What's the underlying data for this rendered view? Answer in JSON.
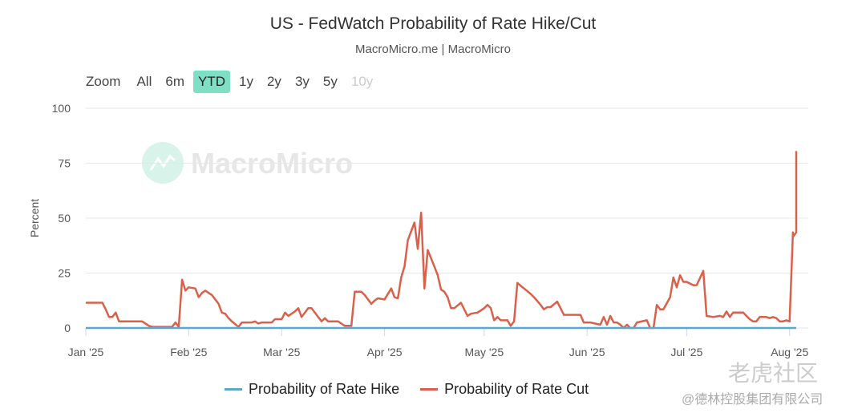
{
  "chart_data": {
    "type": "line",
    "title": "US - FedWatch Probability of Rate Hike/Cut",
    "subtitle": "MacroMicro.me | MacroMicro",
    "ylabel": "Percent",
    "ylim": [
      0,
      100
    ],
    "yticks": [
      0,
      25,
      50,
      75,
      100
    ],
    "xlim": [
      "2025-01-01",
      "2025-08-03"
    ],
    "xticks": [
      {
        "date": "2025-01-01",
        "label": "Jan '25"
      },
      {
        "date": "2025-02-01",
        "label": "Feb '25"
      },
      {
        "date": "2025-03-01",
        "label": "Mar '25"
      },
      {
        "date": "2025-04-01",
        "label": "Apr '25"
      },
      {
        "date": "2025-05-01",
        "label": "May '25"
      },
      {
        "date": "2025-06-01",
        "label": "Jun '25"
      },
      {
        "date": "2025-07-01",
        "label": "Jul '25"
      },
      {
        "date": "2025-08-01",
        "label": "Aug '25"
      }
    ],
    "grid": true,
    "legend_position": "bottom",
    "series": [
      {
        "name": "Probability of Rate Hike",
        "color": "#5ba8c9",
        "points": [
          [
            "2025-01-01",
            0
          ],
          [
            "2025-08-03",
            0
          ]
        ]
      },
      {
        "name": "Probability of Rate Cut",
        "color": "#d9604a",
        "points": [
          [
            "2025-01-01",
            11.5
          ],
          [
            "2025-01-06",
            11.5
          ],
          [
            "2025-01-07",
            8.5
          ],
          [
            "2025-01-08",
            5
          ],
          [
            "2025-01-09",
            5
          ],
          [
            "2025-01-10",
            7
          ],
          [
            "2025-01-11",
            3
          ],
          [
            "2025-01-18",
            3
          ],
          [
            "2025-01-20",
            1
          ],
          [
            "2025-01-21",
            0.5
          ],
          [
            "2025-01-27",
            0.5
          ],
          [
            "2025-01-28",
            2.5
          ],
          [
            "2025-01-29",
            0.5
          ],
          [
            "2025-01-30",
            22
          ],
          [
            "2025-01-31",
            17
          ],
          [
            "2025-02-01",
            18.5
          ],
          [
            "2025-02-03",
            18
          ],
          [
            "2025-02-04",
            14
          ],
          [
            "2025-02-05",
            16
          ],
          [
            "2025-02-06",
            17
          ],
          [
            "2025-02-08",
            15
          ],
          [
            "2025-02-10",
            11
          ],
          [
            "2025-02-11",
            7
          ],
          [
            "2025-02-12",
            6.5
          ],
          [
            "2025-02-13",
            4.5
          ],
          [
            "2025-02-14",
            3
          ],
          [
            "2025-02-16",
            0.5
          ],
          [
            "2025-02-17",
            2.5
          ],
          [
            "2025-02-20",
            2.5
          ],
          [
            "2025-02-21",
            3
          ],
          [
            "2025-02-22",
            2
          ],
          [
            "2025-02-23",
            2.5
          ],
          [
            "2025-02-26",
            2.5
          ],
          [
            "2025-02-27",
            4
          ],
          [
            "2025-03-01",
            4
          ],
          [
            "2025-03-02",
            7
          ],
          [
            "2025-03-03",
            5.5
          ],
          [
            "2025-03-04",
            6.5
          ],
          [
            "2025-03-05",
            7.5
          ],
          [
            "2025-03-06",
            9
          ],
          [
            "2025-03-07",
            5
          ],
          [
            "2025-03-08",
            7
          ],
          [
            "2025-03-09",
            9
          ],
          [
            "2025-03-10",
            9
          ],
          [
            "2025-03-12",
            5
          ],
          [
            "2025-03-13",
            3
          ],
          [
            "2025-03-14",
            4.5
          ],
          [
            "2025-03-15",
            3
          ],
          [
            "2025-03-18",
            3
          ],
          [
            "2025-03-19",
            2
          ],
          [
            "2025-03-20",
            1
          ],
          [
            "2025-03-22",
            1
          ],
          [
            "2025-03-23",
            16.5
          ],
          [
            "2025-03-25",
            16.5
          ],
          [
            "2025-03-26",
            15
          ],
          [
            "2025-03-28",
            11
          ],
          [
            "2025-03-29",
            12.5
          ],
          [
            "2025-03-30",
            13.5
          ],
          [
            "2025-04-01",
            13
          ],
          [
            "2025-04-03",
            18
          ],
          [
            "2025-04-04",
            14
          ],
          [
            "2025-04-05",
            13.5
          ],
          [
            "2025-04-06",
            23
          ],
          [
            "2025-04-07",
            28
          ],
          [
            "2025-04-08",
            40
          ],
          [
            "2025-04-10",
            48
          ],
          [
            "2025-04-11",
            36
          ],
          [
            "2025-04-12",
            52.5
          ],
          [
            "2025-04-13",
            18
          ],
          [
            "2025-04-14",
            35.5
          ],
          [
            "2025-04-16",
            28
          ],
          [
            "2025-04-17",
            24
          ],
          [
            "2025-04-18",
            17.5
          ],
          [
            "2025-04-19",
            16.5
          ],
          [
            "2025-04-20",
            14
          ],
          [
            "2025-04-21",
            9
          ],
          [
            "2025-04-22",
            9
          ],
          [
            "2025-04-24",
            11.5
          ],
          [
            "2025-04-26",
            5.5
          ],
          [
            "2025-04-27",
            6.5
          ],
          [
            "2025-04-29",
            7
          ],
          [
            "2025-05-01",
            9
          ],
          [
            "2025-05-02",
            10.5
          ],
          [
            "2025-05-03",
            9
          ],
          [
            "2025-05-04",
            3.5
          ],
          [
            "2025-05-05",
            5
          ],
          [
            "2025-05-06",
            3.5
          ],
          [
            "2025-05-08",
            3.5
          ],
          [
            "2025-05-09",
            1
          ],
          [
            "2025-05-10",
            3
          ],
          [
            "2025-05-11",
            20.5
          ],
          [
            "2025-05-13",
            18
          ],
          [
            "2025-05-15",
            15.5
          ],
          [
            "2025-05-16",
            14
          ],
          [
            "2025-05-18",
            10.5
          ],
          [
            "2025-05-19",
            8.5
          ],
          [
            "2025-05-20",
            9.5
          ],
          [
            "2025-05-21",
            9.5
          ],
          [
            "2025-05-23",
            12
          ],
          [
            "2025-05-25",
            6
          ],
          [
            "2025-05-29",
            6
          ],
          [
            "2025-05-30",
            6
          ],
          [
            "2025-05-31",
            2.5
          ],
          [
            "2025-06-02",
            2.5
          ],
          [
            "2025-06-05",
            1.5
          ],
          [
            "2025-06-06",
            5
          ],
          [
            "2025-06-07",
            1.5
          ],
          [
            "2025-06-08",
            5.5
          ],
          [
            "2025-06-09",
            2.5
          ],
          [
            "2025-06-10",
            2.5
          ],
          [
            "2025-06-11",
            1.5
          ],
          [
            "2025-06-12",
            0
          ],
          [
            "2025-06-13",
            1.5
          ],
          [
            "2025-06-14",
            0
          ],
          [
            "2025-06-15",
            0
          ],
          [
            "2025-06-16",
            2.5
          ],
          [
            "2025-06-19",
            3.5
          ],
          [
            "2025-06-20",
            0
          ],
          [
            "2025-06-21",
            0
          ],
          [
            "2025-06-22",
            10.5
          ],
          [
            "2025-06-23",
            8.5
          ],
          [
            "2025-06-24",
            8.5
          ],
          [
            "2025-06-26",
            14
          ],
          [
            "2025-06-27",
            23
          ],
          [
            "2025-06-28",
            18.5
          ],
          [
            "2025-06-29",
            24
          ],
          [
            "2025-06-30",
            21
          ],
          [
            "2025-07-01",
            21
          ],
          [
            "2025-07-03",
            19.5
          ],
          [
            "2025-07-04",
            19.5
          ],
          [
            "2025-07-06",
            26
          ],
          [
            "2025-07-07",
            5.5
          ],
          [
            "2025-07-09",
            5
          ],
          [
            "2025-07-11",
            5.5
          ],
          [
            "2025-07-12",
            5
          ],
          [
            "2025-07-13",
            7.5
          ],
          [
            "2025-07-14",
            5
          ],
          [
            "2025-07-15",
            7
          ],
          [
            "2025-07-18",
            7
          ],
          [
            "2025-07-20",
            4
          ],
          [
            "2025-07-21",
            3
          ],
          [
            "2025-07-22",
            3
          ],
          [
            "2025-07-23",
            5
          ],
          [
            "2025-07-25",
            5
          ],
          [
            "2025-07-26",
            4.5
          ],
          [
            "2025-07-27",
            5
          ],
          [
            "2025-07-28",
            4.5
          ],
          [
            "2025-07-29",
            3
          ],
          [
            "2025-07-30",
            3
          ],
          [
            "2025-07-31",
            3.5
          ],
          [
            "2025-08-01",
            3
          ],
          [
            "2025-08-02",
            43.5
          ],
          [
            "2025-08-02",
            41.5
          ],
          [
            "2025-08-03",
            43.5
          ],
          [
            "2025-08-03",
            80.5
          ]
        ]
      }
    ]
  },
  "range_selector": {
    "label": "Zoom",
    "buttons": [
      {
        "label": "All",
        "state": "normal"
      },
      {
        "label": "6m",
        "state": "normal"
      },
      {
        "label": "YTD",
        "state": "active"
      },
      {
        "label": "1y",
        "state": "normal"
      },
      {
        "label": "2y",
        "state": "normal"
      },
      {
        "label": "3y",
        "state": "normal"
      },
      {
        "label": "5y",
        "state": "normal"
      },
      {
        "label": "10y",
        "state": "disabled"
      }
    ]
  },
  "watermarks": {
    "chart_logo": "MacroMicro",
    "corner_top": "老虎社区",
    "corner_bottom": "@德林控股集团有限公司"
  }
}
